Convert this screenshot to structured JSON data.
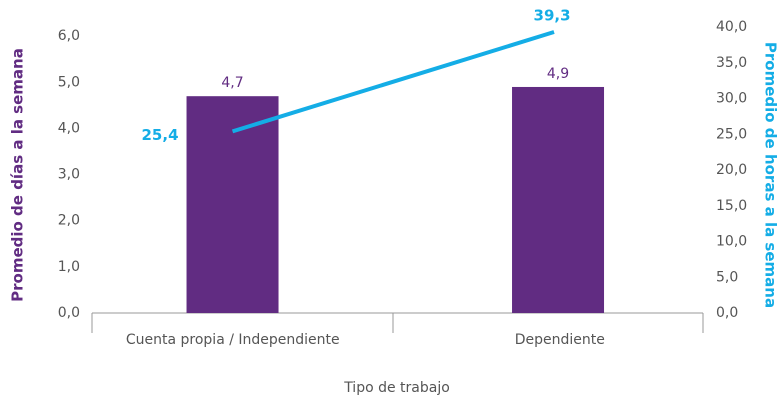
{
  "chart_data": {
    "type": "bar_line",
    "xlabel": "Tipo de trabajo",
    "ylabel": "Promedio de días a la semana",
    "y2label": "Promedio de horas a la semana",
    "categories": [
      "Cuenta propia / Independiente",
      "Dependiente"
    ],
    "series": [
      {
        "type": "bar",
        "color": "#612c82",
        "values": [
          4.7,
          4.9
        ],
        "value_labels": [
          "4,7",
          "4,9"
        ]
      },
      {
        "type": "line",
        "axis": "y2",
        "color": "#14ade6",
        "values": [
          25.4,
          39.3
        ],
        "value_labels": [
          "25,4",
          "39,3"
        ]
      }
    ],
    "ylim": [
      0,
      6.2
    ],
    "yticks": [
      {
        "value": 0,
        "label": "0,0"
      },
      {
        "value": 1,
        "label": "1,0"
      },
      {
        "value": 2,
        "label": "2,0"
      },
      {
        "value": 3,
        "label": "3,0"
      },
      {
        "value": 4,
        "label": "4,0"
      },
      {
        "value": 5,
        "label": "5,0"
      },
      {
        "value": 6,
        "label": "6,0"
      }
    ],
    "y2lim": [
      0,
      40
    ],
    "y2ticks": [
      {
        "value": 0,
        "label": "0,0"
      },
      {
        "value": 5,
        "label": "5,0"
      },
      {
        "value": 10,
        "label": "10,0"
      },
      {
        "value": 15,
        "label": "15,0"
      },
      {
        "value": 20,
        "label": "20,0"
      },
      {
        "value": 25,
        "label": "25,0"
      },
      {
        "value": 30,
        "label": "30,0"
      },
      {
        "value": 35,
        "label": "35,0"
      },
      {
        "value": 40,
        "label": "40,0"
      }
    ],
    "grid": false
  }
}
